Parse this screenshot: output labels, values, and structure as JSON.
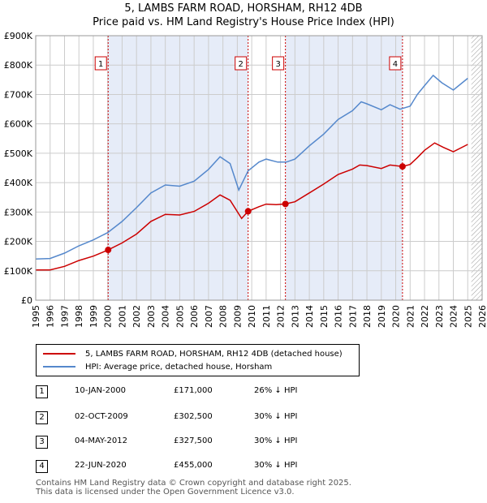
{
  "title_line1": "5, LAMBS FARM ROAD, HORSHAM, RH12 4DB",
  "title_line2": "Price paid vs. HM Land Registry's House Price Index (HPI)",
  "chart_data": {
    "type": "line",
    "title": "5, LAMBS FARM ROAD, HORSHAM, RH12 4DB — Price paid vs. HM Land Registry's House Price Index (HPI)",
    "xlim": [
      1995,
      2026
    ],
    "ylim": [
      0,
      900000
    ],
    "x_ticks": [
      "1995",
      "1996",
      "1997",
      "1998",
      "1999",
      "2000",
      "2001",
      "2002",
      "2003",
      "2004",
      "2005",
      "2006",
      "2007",
      "2008",
      "2009",
      "2010",
      "2011",
      "2012",
      "2013",
      "2014",
      "2015",
      "2016",
      "2017",
      "2018",
      "2019",
      "2020",
      "2021",
      "2022",
      "2023",
      "2024",
      "2025",
      "2026"
    ],
    "y_ticks": [
      {
        "value": 0,
        "label": "£0"
      },
      {
        "value": 100000,
        "label": "£100K"
      },
      {
        "value": 200000,
        "label": "£200K"
      },
      {
        "value": 300000,
        "label": "£300K"
      },
      {
        "value": 400000,
        "label": "£400K"
      },
      {
        "value": 500000,
        "label": "£500K"
      },
      {
        "value": 600000,
        "label": "£600K"
      },
      {
        "value": 700000,
        "label": "£700K"
      },
      {
        "value": 800000,
        "label": "£800K"
      },
      {
        "value": 900000,
        "label": "£900K"
      }
    ],
    "grid": true,
    "series": [
      {
        "name": "5, LAMBS FARM ROAD, HORSHAM, RH12 4DB (detached house)",
        "color": "#cc0000",
        "points": [
          [
            1995.0,
            103000
          ],
          [
            1996.0,
            103000
          ],
          [
            1997.0,
            115000
          ],
          [
            1998.0,
            135000
          ],
          [
            1999.0,
            150000
          ],
          [
            2000.03,
            171000
          ],
          [
            2001.0,
            195000
          ],
          [
            2002.0,
            225000
          ],
          [
            2003.0,
            268000
          ],
          [
            2004.0,
            292000
          ],
          [
            2005.0,
            290000
          ],
          [
            2006.0,
            302000
          ],
          [
            2007.0,
            330000
          ],
          [
            2007.8,
            358000
          ],
          [
            2008.5,
            340000
          ],
          [
            2009.3,
            278000
          ],
          [
            2009.75,
            302500
          ],
          [
            2010.5,
            318000
          ],
          [
            2011.0,
            327000
          ],
          [
            2011.7,
            325000
          ],
          [
            2012.34,
            327500
          ],
          [
            2013.0,
            335000
          ],
          [
            2014.0,
            365000
          ],
          [
            2015.0,
            395000
          ],
          [
            2016.0,
            428000
          ],
          [
            2017.0,
            446000
          ],
          [
            2017.5,
            460000
          ],
          [
            2018.0,
            458000
          ],
          [
            2019.0,
            448000
          ],
          [
            2019.6,
            460000
          ],
          [
            2020.47,
            455000
          ],
          [
            2021.0,
            462000
          ],
          [
            2021.5,
            485000
          ],
          [
            2022.0,
            510000
          ],
          [
            2022.7,
            535000
          ],
          [
            2023.3,
            520000
          ],
          [
            2024.0,
            505000
          ],
          [
            2025.0,
            530000
          ]
        ]
      },
      {
        "name": "HPI: Average price, detached house, Horsham",
        "color": "#5588cc",
        "points": [
          [
            1995.0,
            140000
          ],
          [
            1996.0,
            142000
          ],
          [
            1997.0,
            160000
          ],
          [
            1998.0,
            185000
          ],
          [
            1999.0,
            205000
          ],
          [
            2000.0,
            230000
          ],
          [
            2001.0,
            268000
          ],
          [
            2002.0,
            315000
          ],
          [
            2003.0,
            365000
          ],
          [
            2004.0,
            392000
          ],
          [
            2005.0,
            388000
          ],
          [
            2006.0,
            405000
          ],
          [
            2007.0,
            445000
          ],
          [
            2007.8,
            488000
          ],
          [
            2008.5,
            465000
          ],
          [
            2009.1,
            375000
          ],
          [
            2009.75,
            440000
          ],
          [
            2010.5,
            470000
          ],
          [
            2011.0,
            480000
          ],
          [
            2011.8,
            470000
          ],
          [
            2012.4,
            470000
          ],
          [
            2013.0,
            480000
          ],
          [
            2014.0,
            525000
          ],
          [
            2015.0,
            565000
          ],
          [
            2016.0,
            615000
          ],
          [
            2017.0,
            645000
          ],
          [
            2017.6,
            675000
          ],
          [
            2018.0,
            668000
          ],
          [
            2019.0,
            648000
          ],
          [
            2019.6,
            665000
          ],
          [
            2020.3,
            650000
          ],
          [
            2021.0,
            660000
          ],
          [
            2021.5,
            700000
          ],
          [
            2022.0,
            730000
          ],
          [
            2022.6,
            765000
          ],
          [
            2023.2,
            740000
          ],
          [
            2024.0,
            715000
          ],
          [
            2025.0,
            755000
          ]
        ]
      }
    ],
    "sales": [
      {
        "label": "1",
        "x": 2000.03,
        "price": 171000
      },
      {
        "label": "2",
        "x": 2009.75,
        "price": 302500
      },
      {
        "label": "3",
        "x": 2012.34,
        "price": 327500
      },
      {
        "label": "4",
        "x": 2020.47,
        "price": 455000
      }
    ],
    "shaded_ranges": [
      [
        2000.03,
        2009.75
      ],
      [
        2012.34,
        2020.47
      ]
    ],
    "forecast_start": 2025.25,
    "colors": {
      "shade": "#e6ecf8",
      "grid": "#cccccc",
      "marker_box": "#cc0000"
    }
  },
  "legend": {
    "property_label": "5, LAMBS FARM ROAD, HORSHAM, RH12 4DB (detached house)",
    "hpi_label": "HPI: Average price, detached house, Horsham",
    "property_color": "#cc0000",
    "hpi_color": "#5588cc"
  },
  "transactions": [
    {
      "num": "1",
      "date": "10-JAN-2000",
      "price": "£171,000",
      "hpi": "26% ↓ HPI"
    },
    {
      "num": "2",
      "date": "02-OCT-2009",
      "price": "£302,500",
      "hpi": "30% ↓ HPI"
    },
    {
      "num": "3",
      "date": "04-MAY-2012",
      "price": "£327,500",
      "hpi": "30% ↓ HPI"
    },
    {
      "num": "4",
      "date": "22-JUN-2020",
      "price": "£455,000",
      "hpi": "30% ↓ HPI"
    }
  ],
  "footer": {
    "line1": "Contains HM Land Registry data © Crown copyright and database right 2025.",
    "line2": "This data is licensed under the Open Government Licence v3.0."
  }
}
